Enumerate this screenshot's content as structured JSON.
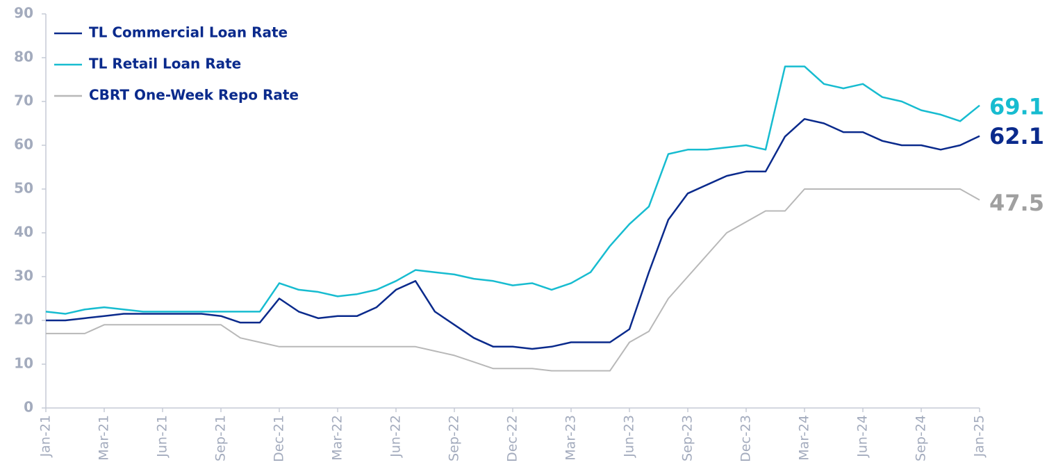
{
  "chart_data": {
    "type": "line",
    "categories": [
      "Jan-21",
      null,
      null,
      "Mar-21",
      null,
      null,
      "Jun-21",
      null,
      null,
      "Sep-21",
      null,
      null,
      "Dec-21",
      null,
      null,
      "Mar-22",
      null,
      null,
      "Jun-22",
      null,
      null,
      "Sep-22",
      null,
      null,
      "Dec-22",
      null,
      null,
      "Mar-23",
      null,
      null,
      "Jun-23",
      null,
      null,
      "Sep-23",
      null,
      null,
      "Dec-23",
      null,
      null,
      "Mar-24",
      null,
      null,
      "Jun-24",
      null,
      null,
      "Sep-24",
      null,
      null,
      "Jan-25"
    ],
    "series": [
      {
        "name": "TL Commercial Loan Rate",
        "color": "#0a2a8c",
        "values": [
          20,
          20,
          20.5,
          21,
          21.5,
          21.5,
          21.5,
          21.5,
          21.5,
          21,
          19.5,
          19.5,
          25,
          22,
          20.5,
          21,
          21,
          23,
          27,
          29,
          22,
          19,
          16,
          14,
          14,
          13.5,
          14,
          15,
          15,
          15,
          18,
          31,
          43,
          49,
          51,
          53,
          54,
          54,
          62,
          66,
          65,
          63,
          63,
          61,
          60,
          60,
          59,
          60,
          62.1
        ]
      },
      {
        "name": "TL Retail Loan Rate",
        "color": "#17bcd0",
        "values": [
          22,
          21.5,
          22.5,
          23,
          22.5,
          22,
          22,
          22,
          22,
          22,
          22,
          22,
          28.5,
          27,
          26.5,
          25.5,
          26,
          27,
          29,
          31.5,
          31,
          30.5,
          29.5,
          29,
          28,
          28.5,
          27,
          28.5,
          31,
          37,
          42,
          46,
          58,
          59,
          59,
          59.5,
          60,
          59,
          78,
          78,
          74,
          73,
          74,
          71,
          70,
          68,
          67,
          65.5,
          69.1
        ]
      },
      {
        "name": "CBRT One-Week Repo Rate",
        "color": "#b8b8b8",
        "values": [
          17,
          17,
          17,
          19,
          19,
          19,
          19,
          19,
          19,
          19,
          16,
          15,
          14,
          14,
          14,
          14,
          14,
          14,
          14,
          14,
          13,
          12,
          10.5,
          9,
          9,
          9,
          8.5,
          8.5,
          8.5,
          8.5,
          15,
          17.5,
          25,
          30,
          35,
          40,
          42.5,
          45,
          45,
          50,
          50,
          50,
          50,
          50,
          50,
          50,
          50,
          50,
          47.5
        ]
      }
    ],
    "ylim": [
      0,
      90
    ],
    "yticks": [
      0,
      10,
      20,
      30,
      40,
      50,
      60,
      70,
      80,
      90
    ],
    "legend": "upper left"
  }
}
